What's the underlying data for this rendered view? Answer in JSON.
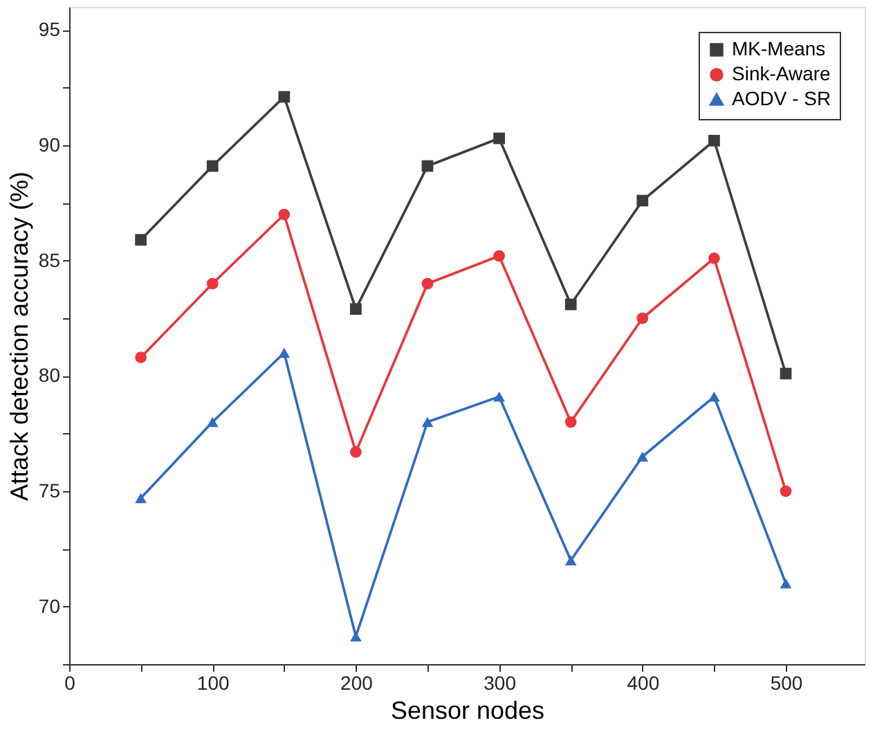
{
  "chart_data": {
    "type": "line",
    "xlabel": "Sensor nodes",
    "ylabel": "Attack detection accuracy (%)",
    "x": [
      50,
      100,
      150,
      200,
      250,
      300,
      350,
      400,
      450,
      500
    ],
    "series": [
      {
        "name": "MK-Means",
        "color": "#3c3c3c",
        "marker": "square",
        "values": [
          85.9,
          89.1,
          92.1,
          82.9,
          89.1,
          90.3,
          83.1,
          87.6,
          90.2,
          80.1
        ]
      },
      {
        "name": "Sink-Aware",
        "color": "#e8363a",
        "marker": "circle",
        "values": [
          80.8,
          84.0,
          87.0,
          76.7,
          84.0,
          85.2,
          78.0,
          82.5,
          85.1,
          75.0
        ]
      },
      {
        "name": "AODV - SR",
        "color": "#2f6bbf",
        "marker": "triangle",
        "values": [
          74.7,
          78.0,
          81.0,
          68.7,
          78.0,
          79.1,
          72.0,
          76.5,
          79.1,
          71.0
        ]
      }
    ],
    "xlim": [
      0,
      555
    ],
    "xticks": [
      0,
      {
        "value": 50,
        "label": null
      },
      100,
      {
        "value": 150,
        "label": null
      },
      200,
      {
        "value": 250,
        "label": null
      },
      300,
      {
        "value": 350,
        "label": null
      },
      400,
      {
        "value": 450,
        "label": null
      },
      500
    ],
    "ylim": [
      67.5,
      96
    ],
    "yticks": [
      {
        "value": 67.5,
        "label": null
      },
      70,
      {
        "value": 72.5,
        "label": null
      },
      75,
      {
        "value": 77.5,
        "label": null
      },
      80,
      {
        "value": 82.5,
        "label": null
      },
      85,
      {
        "value": 87.5,
        "label": null
      },
      90,
      {
        "value": 92.5,
        "label": null
      },
      95
    ],
    "grid": false,
    "legend": "top right",
    "line_style": "solid"
  }
}
